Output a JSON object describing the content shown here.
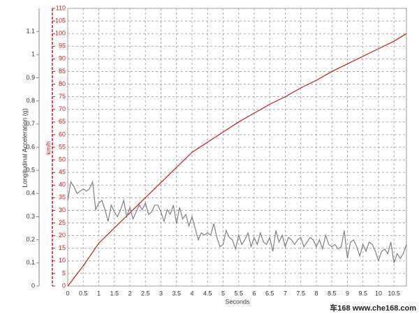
{
  "chart_data": {
    "type": "line",
    "xlabel": "Seconds",
    "ylabel": "Longitudinal Acceleration (g)",
    "y2label": "km/h",
    "watermark": "车168 www.che168.com",
    "xlim": [
      0,
      10.9
    ],
    "xticks": [
      0,
      0.5,
      1,
      1.5,
      2,
      2.5,
      3,
      3.5,
      4,
      4.5,
      5,
      5.5,
      6,
      6.5,
      7,
      7.5,
      8,
      8.5,
      9,
      9.5,
      10,
      10.5
    ],
    "ylim": [
      0,
      1.2
    ],
    "yticks": [
      0,
      0.1,
      0.2,
      0.3,
      0.4,
      0.5,
      0.6,
      0.7,
      0.8,
      0.9,
      1,
      1.1
    ],
    "y2lim": [
      0,
      110
    ],
    "y2ticks": [
      0,
      5,
      10,
      15,
      20,
      25,
      30,
      35,
      40,
      45,
      50,
      55,
      60,
      65,
      70,
      75,
      80,
      85,
      90,
      95,
      100,
      105,
      110
    ],
    "grid": true,
    "series": [
      {
        "color": "#c0201e",
        "axis": "y2",
        "x": [
          0,
          0.5,
          1,
          1.5,
          2,
          2.5,
          3,
          3.5,
          4,
          4.5,
          5,
          5.5,
          6,
          6.5,
          7,
          7.5,
          8,
          8.5,
          9,
          9.5,
          10,
          10.5,
          10.9
        ],
        "values": [
          0,
          8,
          17,
          23,
          29,
          35,
          41,
          47,
          53,
          57,
          61,
          65,
          68.5,
          72,
          75,
          78.5,
          81.5,
          85,
          88,
          91,
          94,
          97,
          100
        ]
      },
      {
        "color": "#808080",
        "x": [
          0,
          0.1,
          0.2,
          0.3,
          0.4,
          0.5,
          0.6,
          0.7,
          0.8,
          0.9,
          1,
          1.1,
          1.2,
          1.3,
          1.4,
          1.5,
          1.6,
          1.7,
          1.8,
          1.9,
          2,
          2.1,
          2.2,
          2.3,
          2.4,
          2.5,
          2.6,
          2.7,
          2.8,
          2.9,
          3,
          3.1,
          3.2,
          3.3,
          3.4,
          3.5,
          3.6,
          3.7,
          3.8,
          3.9,
          4,
          4.1,
          4.2,
          4.3,
          4.4,
          4.5,
          4.6,
          4.7,
          4.8,
          4.9,
          5,
          5.1,
          5.2,
          5.3,
          5.4,
          5.5,
          5.6,
          5.7,
          5.8,
          5.9,
          6,
          6.1,
          6.2,
          6.3,
          6.4,
          6.5,
          6.6,
          6.7,
          6.8,
          6.9,
          7,
          7.1,
          7.2,
          7.3,
          7.4,
          7.5,
          7.6,
          7.7,
          7.8,
          7.9,
          8,
          8.1,
          8.2,
          8.3,
          8.4,
          8.5,
          8.6,
          8.7,
          8.8,
          8.9,
          9,
          9.1,
          9.2,
          9.3,
          9.4,
          9.5,
          9.6,
          9.7,
          9.8,
          9.9,
          10,
          10.1,
          10.2,
          10.3,
          10.4,
          10.5,
          10.6,
          10.7,
          10.8,
          10.9
        ],
        "values": [
          0.37,
          0.45,
          0.43,
          0.4,
          0.41,
          0.42,
          0.41,
          0.42,
          0.45,
          0.33,
          0.36,
          0.37,
          0.33,
          0.28,
          0.35,
          0.32,
          0.3,
          0.33,
          0.37,
          0.3,
          0.34,
          0.29,
          0.32,
          0.35,
          0.33,
          0.36,
          0.31,
          0.32,
          0.35,
          0.35,
          0.32,
          0.28,
          0.33,
          0.31,
          0.35,
          0.27,
          0.34,
          0.29,
          0.31,
          0.26,
          0.3,
          0.25,
          0.2,
          0.23,
          0.22,
          0.23,
          0.22,
          0.27,
          0.21,
          0.17,
          0.18,
          0.24,
          0.21,
          0.2,
          0.16,
          0.22,
          0.18,
          0.2,
          0.23,
          0.17,
          0.21,
          0.18,
          0.23,
          0.19,
          0.18,
          0.21,
          0.15,
          0.24,
          0.19,
          0.22,
          0.17,
          0.21,
          0.2,
          0.18,
          0.2,
          0.21,
          0.17,
          0.19,
          0.21,
          0.2,
          0.17,
          0.2,
          0.16,
          0.22,
          0.18,
          0.17,
          0.18,
          0.16,
          0.17,
          0.24,
          0.12,
          0.19,
          0.2,
          0.17,
          0.13,
          0.18,
          0.15,
          0.19,
          0.18,
          0.15,
          0.11,
          0.15,
          0.16,
          0.14,
          0.19,
          0.1,
          0.14,
          0.12,
          0.14,
          0.18
        ]
      }
    ]
  }
}
